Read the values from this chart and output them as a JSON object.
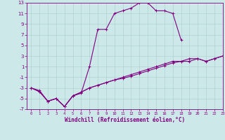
{
  "xlabel": "Windchill (Refroidissement éolien,°C)",
  "xlim": [
    -0.5,
    23
  ],
  "ylim": [
    -7,
    13
  ],
  "xticks": [
    0,
    1,
    2,
    3,
    4,
    5,
    6,
    7,
    8,
    9,
    10,
    11,
    12,
    13,
    14,
    15,
    16,
    17,
    18,
    19,
    20,
    21,
    22,
    23
  ],
  "yticks": [
    -7,
    -5,
    -3,
    -1,
    1,
    3,
    5,
    7,
    9,
    11,
    13
  ],
  "bg_color": "#cce8e8",
  "line_color": "#800080",
  "grid_color": "#aacccc",
  "line1_x": [
    0,
    1,
    2,
    3,
    4,
    5,
    6,
    7,
    8,
    9,
    10,
    11,
    12,
    13,
    14,
    15,
    16,
    17,
    18,
    19,
    20,
    21,
    22,
    23
  ],
  "line1_y": [
    -3,
    -3.5,
    -5.5,
    -5,
    -6.5,
    -4.5,
    -4,
    1,
    8,
    8,
    11,
    11.5,
    12,
    13,
    13,
    11.5,
    11.5,
    11,
    6,
    null,
    null,
    null,
    null,
    3
  ],
  "line2_x": [
    0,
    1,
    2,
    3,
    4,
    5,
    6,
    7,
    8,
    9,
    10,
    11,
    12,
    13,
    14,
    15,
    16,
    17,
    18,
    19,
    20,
    21,
    22,
    23
  ],
  "line2_y": [
    -3,
    -3.7,
    -5.5,
    -5,
    -6.5,
    -4.5,
    -3.8,
    -3,
    -2.5,
    -2,
    -1.5,
    -1,
    -0.5,
    0,
    0.5,
    1,
    1.5,
    2,
    2,
    2.5,
    2.5,
    2,
    2.5,
    3
  ],
  "line3_x": [
    0,
    1,
    2,
    3,
    4,
    5,
    6,
    7,
    8,
    9,
    10,
    11,
    12,
    13,
    14,
    15,
    16,
    17,
    18,
    19,
    20,
    21,
    22,
    23
  ],
  "line3_y": [
    -3,
    -3.7,
    -5.5,
    -5,
    -6.5,
    -4.5,
    -3.8,
    -3,
    -2.5,
    -2,
    -1.5,
    -1.2,
    -0.8,
    -0.3,
    0.2,
    0.7,
    1.2,
    1.7,
    2,
    2,
    2.5,
    2,
    2.5,
    3
  ]
}
